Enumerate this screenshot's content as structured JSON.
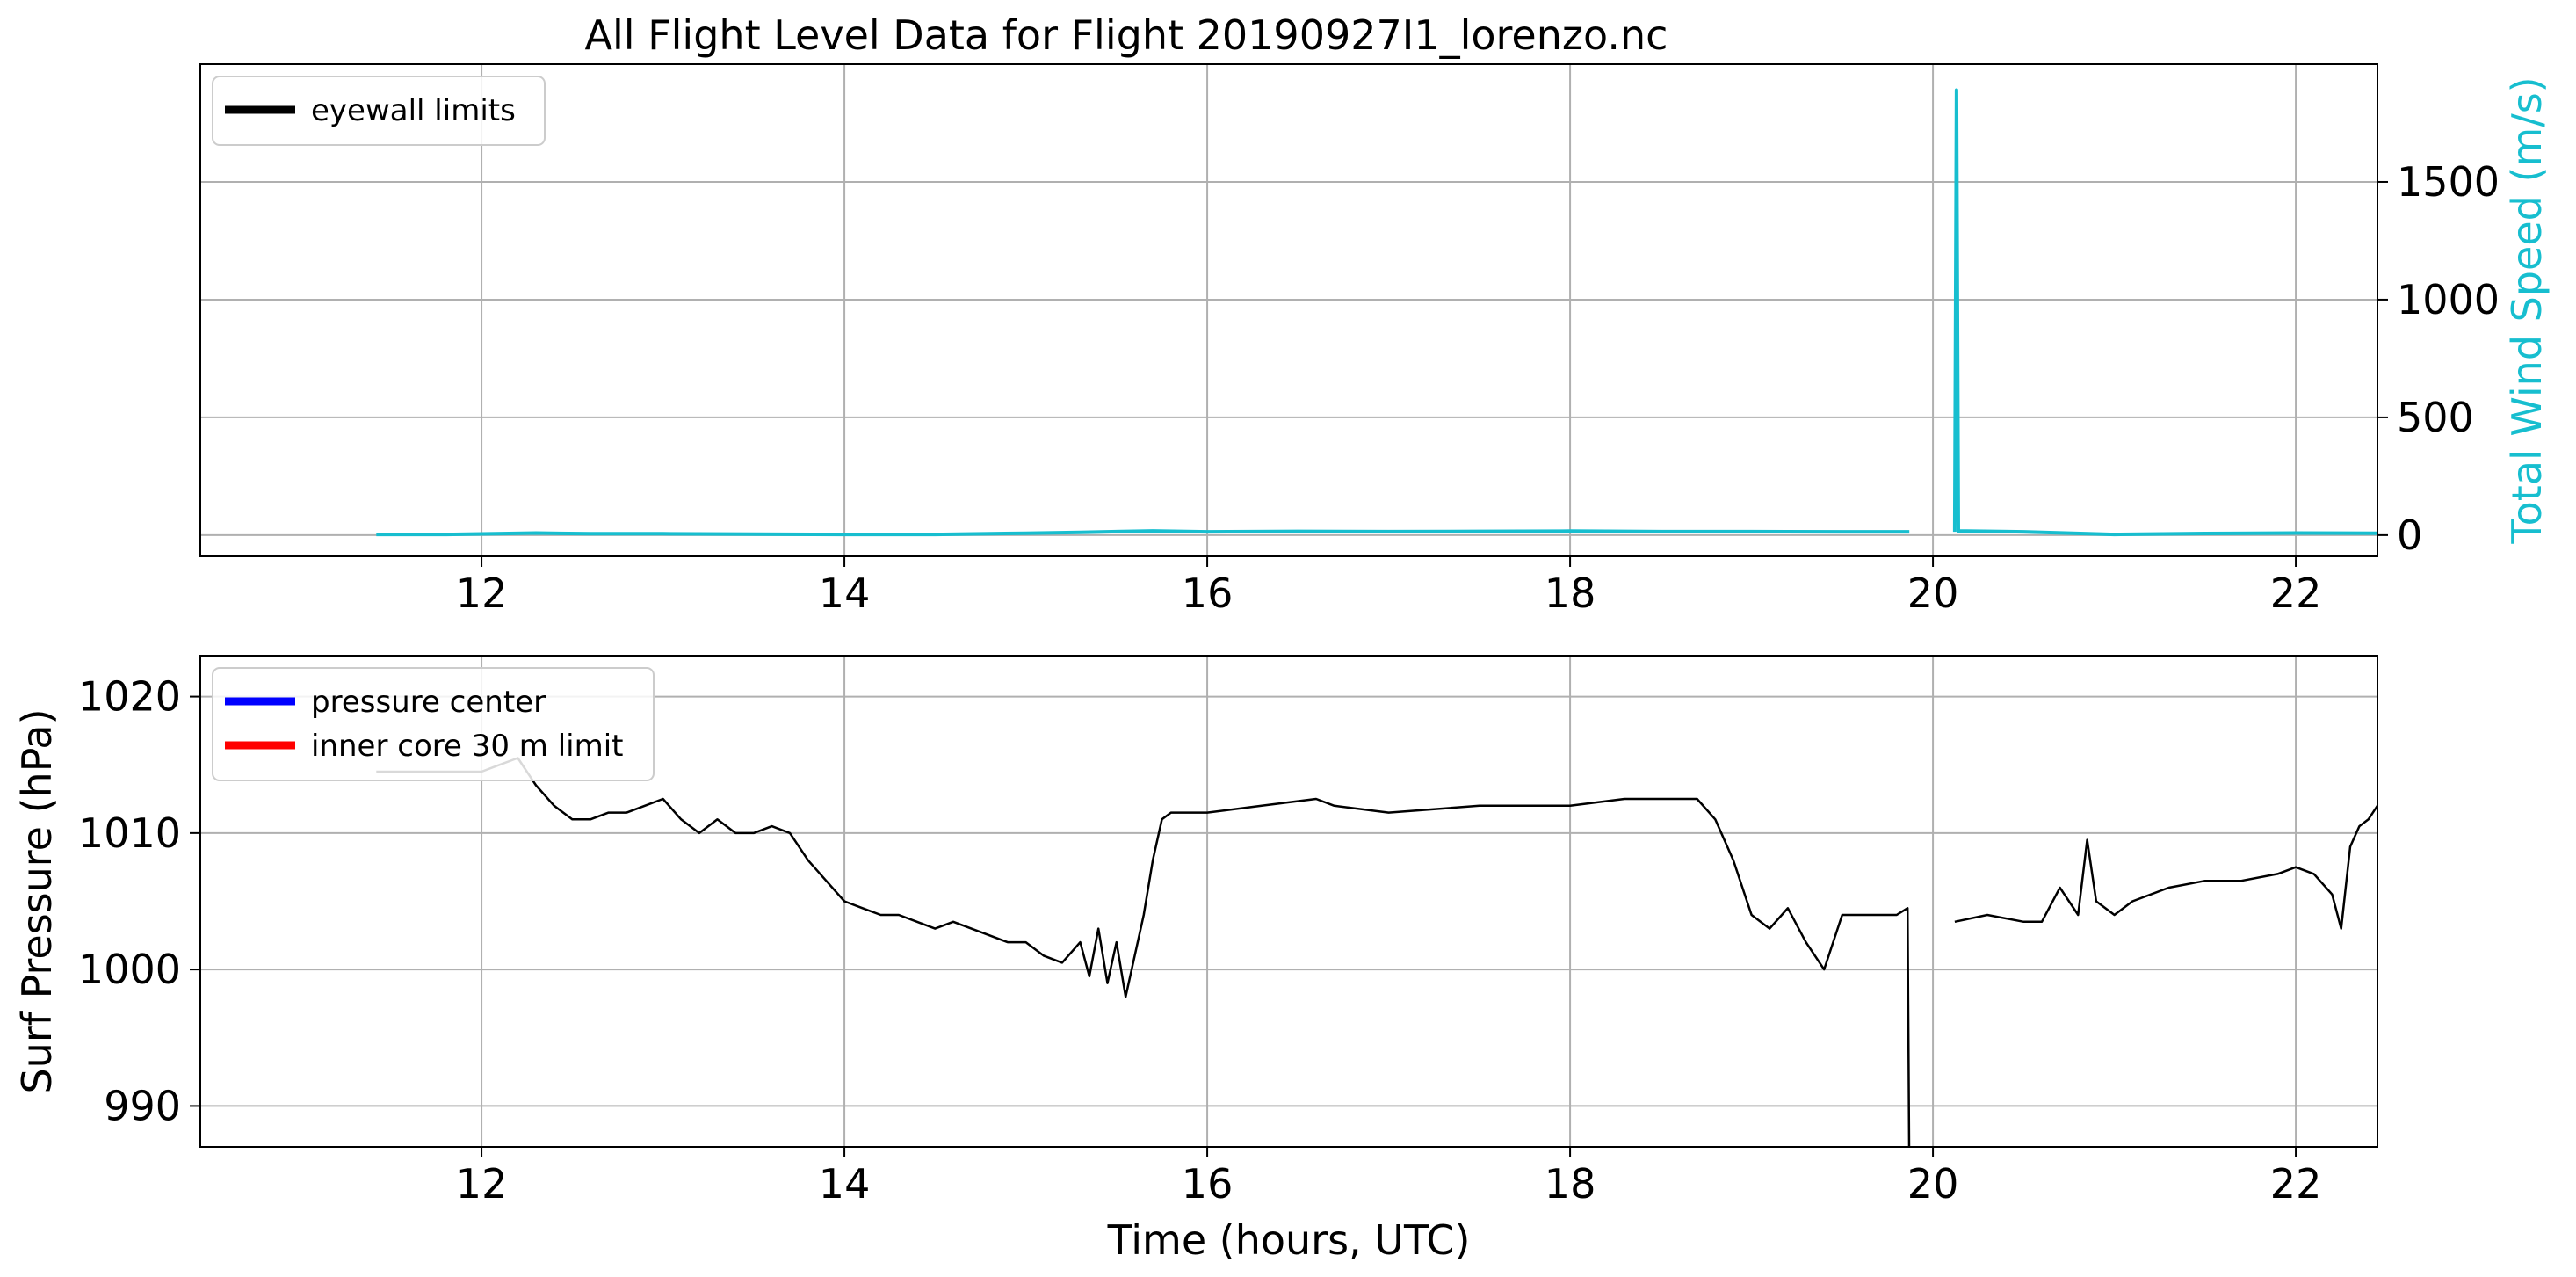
{
  "figure": {
    "title": "All Flight Level Data for Flight 20190927I1_lorenzo.nc"
  },
  "chart_data": [
    {
      "type": "line",
      "title": "All Flight Level Data for Flight 20190927I1_lorenzo.nc",
      "xlabel": "",
      "ylabel": "Total Wind Speed (m/s)",
      "ylabel_side": "right",
      "ylabel_color": "#17becf",
      "xlim": [
        10.45,
        22.45
      ],
      "ylim": [
        -90,
        2000
      ],
      "x_ticks": [
        12,
        14,
        16,
        18,
        20,
        22
      ],
      "x_tick_labels": [
        "12",
        "14",
        "16",
        "18",
        "20",
        "22"
      ],
      "y_ticks": [
        0,
        500,
        1000,
        1500
      ],
      "y_tick_labels": [
        "0",
        "500",
        "1000",
        "1500"
      ],
      "grid": true,
      "legend": {
        "placement": "upper-left",
        "entries": [
          {
            "label": "eyewall limits",
            "color": "#000000"
          }
        ]
      },
      "series": [
        {
          "color": "#17becf",
          "points": [
            [
              11.42,
              3
            ],
            [
              11.8,
              3
            ],
            [
              12.0,
              5
            ],
            [
              12.3,
              9
            ],
            [
              12.6,
              6
            ],
            [
              13.0,
              6
            ],
            [
              13.5,
              4
            ],
            [
              14.0,
              3
            ],
            [
              14.5,
              3
            ],
            [
              15.0,
              8
            ],
            [
              15.3,
              12
            ],
            [
              15.7,
              18
            ],
            [
              16.0,
              14
            ],
            [
              16.5,
              16
            ],
            [
              17.0,
              15
            ],
            [
              17.5,
              16
            ],
            [
              18.0,
              17
            ],
            [
              18.5,
              15
            ],
            [
              19.0,
              15
            ],
            [
              19.5,
              14
            ],
            [
              19.87,
              14
            ],
            null,
            [
              20.12,
              14
            ],
            [
              20.13,
              1890
            ],
            [
              20.14,
              18
            ],
            [
              20.5,
              14
            ],
            [
              21.0,
              3
            ],
            [
              21.5,
              7
            ],
            [
              22.0,
              9
            ],
            [
              22.45,
              8
            ]
          ]
        }
      ]
    },
    {
      "type": "line",
      "xlabel": "Time (hours, UTC)",
      "ylabel": "Surf Pressure (hPa)",
      "xlim": [
        10.45,
        22.45
      ],
      "ylim": [
        987,
        1023
      ],
      "x_ticks": [
        12,
        14,
        16,
        18,
        20,
        22
      ],
      "x_tick_labels": [
        "12",
        "14",
        "16",
        "18",
        "20",
        "22"
      ],
      "y_ticks": [
        990,
        1000,
        1010,
        1020
      ],
      "y_tick_labels": [
        "990",
        "1000",
        "1010",
        "1020"
      ],
      "grid": true,
      "legend": {
        "placement": "upper-left",
        "entries": [
          {
            "label": "pressure center",
            "color": "#0000ff"
          },
          {
            "label": "inner core 30 m limit",
            "color": "#ff0000"
          }
        ]
      },
      "series": [
        {
          "color": "#000000",
          "points": [
            [
              11.42,
              1014.5
            ],
            [
              11.7,
              1014.5
            ],
            [
              12.0,
              1014.5
            ],
            [
              12.1,
              1015.0
            ],
            [
              12.2,
              1015.5
            ],
            [
              12.3,
              1013.5
            ],
            [
              12.4,
              1012.0
            ],
            [
              12.5,
              1011.0
            ],
            [
              12.6,
              1011.0
            ],
            [
              12.7,
              1011.5
            ],
            [
              12.8,
              1011.5
            ],
            [
              12.9,
              1012.0
            ],
            [
              13.0,
              1012.5
            ],
            [
              13.1,
              1011.0
            ],
            [
              13.2,
              1010.0
            ],
            [
              13.3,
              1011.0
            ],
            [
              13.4,
              1010.0
            ],
            [
              13.5,
              1010.0
            ],
            [
              13.6,
              1010.5
            ],
            [
              13.7,
              1010.0
            ],
            [
              13.8,
              1008.0
            ],
            [
              13.9,
              1006.5
            ],
            [
              14.0,
              1005.0
            ],
            [
              14.1,
              1004.5
            ],
            [
              14.2,
              1004.0
            ],
            [
              14.3,
              1004.0
            ],
            [
              14.4,
              1003.5
            ],
            [
              14.5,
              1003.0
            ],
            [
              14.6,
              1003.5
            ],
            [
              14.7,
              1003.0
            ],
            [
              14.8,
              1002.5
            ],
            [
              14.9,
              1002.0
            ],
            [
              15.0,
              1002.0
            ],
            [
              15.1,
              1001.0
            ],
            [
              15.2,
              1000.5
            ],
            [
              15.3,
              1002.0
            ],
            [
              15.35,
              999.5
            ],
            [
              15.4,
              1003.0
            ],
            [
              15.45,
              999.0
            ],
            [
              15.5,
              1002.0
            ],
            [
              15.55,
              998.0
            ],
            [
              15.6,
              1001.0
            ],
            [
              15.65,
              1004.0
            ],
            [
              15.7,
              1008.0
            ],
            [
              15.75,
              1011.0
            ],
            [
              15.8,
              1011.5
            ],
            [
              16.0,
              1011.5
            ],
            [
              16.3,
              1012.0
            ],
            [
              16.6,
              1012.5
            ],
            [
              16.7,
              1012.0
            ],
            [
              17.0,
              1011.5
            ],
            [
              17.5,
              1012.0
            ],
            [
              18.0,
              1012.0
            ],
            [
              18.3,
              1012.5
            ],
            [
              18.7,
              1012.5
            ],
            [
              18.8,
              1011.0
            ],
            [
              18.9,
              1008.0
            ],
            [
              19.0,
              1004.0
            ],
            [
              19.1,
              1003.0
            ],
            [
              19.2,
              1004.5
            ],
            [
              19.3,
              1002.0
            ],
            [
              19.4,
              1000.0
            ],
            [
              19.5,
              1004.0
            ],
            [
              19.6,
              1004.0
            ],
            [
              19.7,
              1004.0
            ],
            [
              19.8,
              1004.0
            ],
            [
              19.86,
              1004.5
            ],
            [
              19.87,
              985.0
            ],
            null,
            [
              20.12,
              1003.5
            ],
            [
              20.3,
              1004.0
            ],
            [
              20.5,
              1003.5
            ],
            [
              20.6,
              1003.5
            ],
            [
              20.7,
              1006.0
            ],
            [
              20.8,
              1004.0
            ],
            [
              20.85,
              1009.5
            ],
            [
              20.9,
              1005.0
            ],
            [
              21.0,
              1004.0
            ],
            [
              21.1,
              1005.0
            ],
            [
              21.3,
              1006.0
            ],
            [
              21.5,
              1006.5
            ],
            [
              21.7,
              1006.5
            ],
            [
              21.9,
              1007.0
            ],
            [
              22.0,
              1007.5
            ],
            [
              22.1,
              1007.0
            ],
            [
              22.2,
              1005.5
            ],
            [
              22.25,
              1003.0
            ],
            [
              22.3,
              1009.0
            ],
            [
              22.35,
              1010.5
            ],
            [
              22.4,
              1011.0
            ],
            [
              22.45,
              1012.0
            ]
          ]
        }
      ]
    }
  ]
}
